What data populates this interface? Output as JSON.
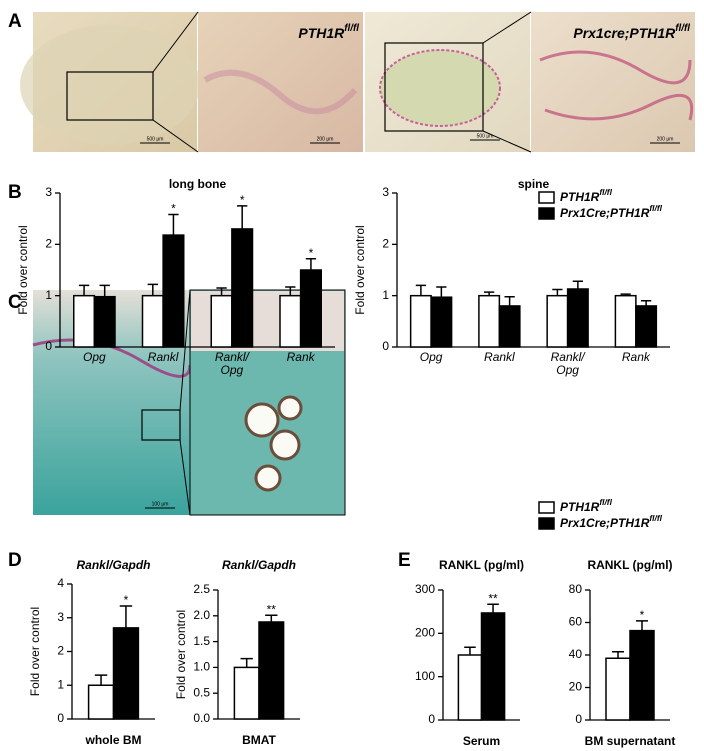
{
  "panel_labels": [
    "A",
    "B",
    "C",
    "D",
    "E"
  ],
  "images": [
    {
      "scale": "500 μm"
    },
    {
      "label": "PTH1Rfl/fl",
      "scale": "200 μm"
    },
    {
      "scale": "500 μm"
    },
    {
      "label": "Prx1cre;PTH1Rfl/fl",
      "scale": "200 μm"
    },
    {
      "scale": "100 μm"
    }
  ],
  "chart_data": [
    {
      "type": "bar",
      "title": "long bone",
      "ylabel": "Fold over control",
      "categories": [
        "Opg",
        "Rankl",
        "Rankl/Opg",
        "Rank"
      ],
      "ylim": [
        0,
        3
      ],
      "yticks": [
        0,
        1,
        2,
        3
      ],
      "series": [
        {
          "name": "PTH1Rfl/fl",
          "color": "#ffffff",
          "values": [
            1,
            1,
            1,
            1
          ],
          "errors": [
            0.2,
            0.22,
            0.15,
            0.17
          ],
          "significance": [
            null,
            null,
            null,
            null
          ]
        },
        {
          "name": "Prx1Cre;PTH1Rfl/fl",
          "color": "#000000",
          "values": [
            0.98,
            2.18,
            2.3,
            1.5
          ],
          "errors": [
            0.22,
            0.4,
            0.45,
            0.22
          ],
          "significance": [
            null,
            "*",
            "*",
            "*"
          ]
        }
      ]
    },
    {
      "type": "bar",
      "title": "spine",
      "ylabel": "Fold over control",
      "categories": [
        "Opg",
        "Rankl",
        "Rankl/Opg",
        "Rank"
      ],
      "ylim": [
        0,
        3
      ],
      "yticks": [
        0,
        1,
        2,
        3
      ],
      "series": [
        {
          "name": "PTH1Rfl/fl",
          "color": "#ffffff",
          "values": [
            1,
            1,
            1,
            1
          ],
          "errors": [
            0.2,
            0.07,
            0.12,
            0.03
          ],
          "significance": [
            null,
            null,
            null,
            null
          ]
        },
        {
          "name": "Prx1Cre;PTH1Rfl/fl",
          "color": "#000000",
          "values": [
            0.97,
            0.8,
            1.13,
            0.8
          ],
          "errors": [
            0.2,
            0.18,
            0.15,
            0.1
          ],
          "significance": [
            null,
            null,
            null,
            null
          ]
        }
      ]
    },
    {
      "type": "bar",
      "title": "Rankl/Gapdh",
      "ylabel": "Fold over control",
      "categories": [
        "whole BM"
      ],
      "ylim": [
        0,
        4
      ],
      "yticks": [
        0,
        1,
        2,
        3,
        4
      ],
      "series": [
        {
          "name": "PTH1Rfl/fl",
          "color": "#ffffff",
          "values": [
            1
          ],
          "errors": [
            0.3
          ],
          "significance": [
            null
          ]
        },
        {
          "name": "Prx1Cre;PTH1Rfl/fl",
          "color": "#000000",
          "values": [
            2.7
          ],
          "errors": [
            0.65
          ],
          "significance": [
            "*"
          ]
        }
      ]
    },
    {
      "type": "bar",
      "title": "Rankl/Gapdh",
      "ylabel": "Fold over control",
      "categories": [
        "BMAT"
      ],
      "ylim": [
        0,
        2.5
      ],
      "yticks": [
        {
          "value": 0,
          "label": "0.0"
        },
        0.5,
        {
          "value": 1,
          "label": "1.0"
        },
        1.5,
        {
          "value": 2,
          "label": "2.0"
        },
        2.5
      ],
      "series": [
        {
          "name": "PTH1Rfl/fl",
          "color": "#ffffff",
          "values": [
            1
          ],
          "errors": [
            0.17
          ],
          "significance": [
            null
          ]
        },
        {
          "name": "Prx1Cre;PTH1Rfl/fl",
          "color": "#000000",
          "values": [
            1.88
          ],
          "errors": [
            0.13
          ],
          "significance": [
            "**"
          ]
        }
      ]
    },
    {
      "type": "bar",
      "title": "RANKL (pg/ml)",
      "categories": [
        "Serum"
      ],
      "ylim": [
        0,
        300
      ],
      "yticks": [
        0,
        100,
        200,
        300
      ],
      "series": [
        {
          "name": "PTH1Rfl/fl",
          "color": "#ffffff",
          "values": [
            150
          ],
          "errors": [
            18
          ],
          "significance": [
            null
          ]
        },
        {
          "name": "Prx1Cre;PTH1Rfl/fl",
          "color": "#000000",
          "values": [
            247
          ],
          "errors": [
            20
          ],
          "significance": [
            "**"
          ]
        }
      ]
    },
    {
      "type": "bar",
      "title": "RANKL (pg/ml)",
      "categories": [
        "BM supernatant"
      ],
      "ylim": [
        0,
        80
      ],
      "yticks": [
        0,
        20,
        40,
        60,
        80
      ],
      "series": [
        {
          "name": "PTH1Rfl/fl",
          "color": "#ffffff",
          "values": [
            38
          ],
          "errors": [
            4
          ],
          "significance": [
            null
          ]
        },
        {
          "name": "Prx1Cre;PTH1Rfl/fl",
          "color": "#000000",
          "values": [
            55
          ],
          "errors": [
            6
          ],
          "significance": [
            "*"
          ]
        }
      ]
    }
  ]
}
